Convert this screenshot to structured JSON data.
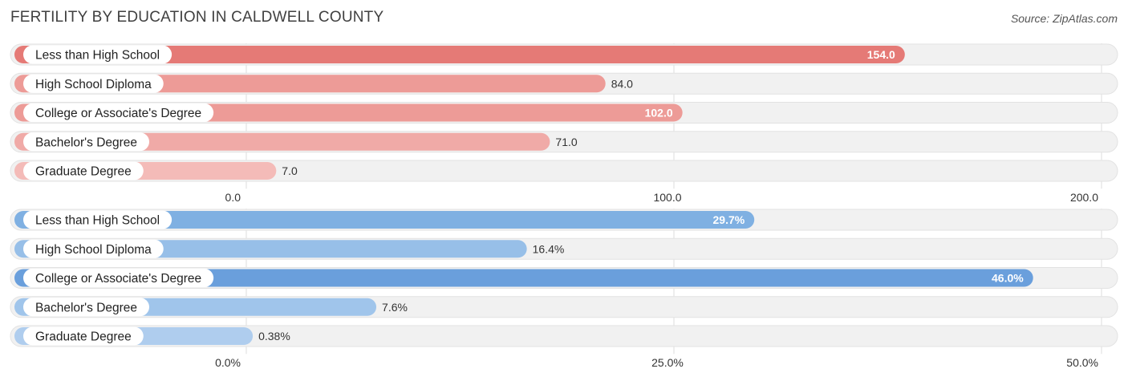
{
  "title": "FERTILITY BY EDUCATION IN CALDWELL COUNTY",
  "source": "Source: ZipAtlas.com",
  "chart_data": [
    {
      "type": "bar",
      "orientation": "horizontal",
      "categories": [
        "Less than High School",
        "High School Diploma",
        "College or Associate's Degree",
        "Bachelor's Degree",
        "Graduate Degree"
      ],
      "values": [
        154.0,
        84.0,
        102.0,
        71.0,
        7.0
      ],
      "value_labels": [
        "154.0",
        "84.0",
        "102.0",
        "71.0",
        "7.0"
      ],
      "xlim": [
        0,
        200
      ],
      "ticks": [
        0,
        100,
        200
      ],
      "tick_labels": [
        "0.0",
        "100.0",
        "200.0"
      ],
      "colors": [
        "#e57a76",
        "#ed9b97",
        "#ed9b97",
        "#f0aaa7",
        "#f4bbb8"
      ],
      "grid": true
    },
    {
      "type": "bar",
      "orientation": "horizontal",
      "categories": [
        "Less than High School",
        "High School Diploma",
        "College or Associate's Degree",
        "Bachelor's Degree",
        "Graduate Degree"
      ],
      "values": [
        29.7,
        16.4,
        46.0,
        7.6,
        0.38
      ],
      "value_labels": [
        "29.7%",
        "16.4%",
        "46.0%",
        "7.6%",
        "0.38%"
      ],
      "xlim": [
        0,
        50
      ],
      "ticks": [
        0,
        25,
        50
      ],
      "tick_labels": [
        "0.0%",
        "25.0%",
        "50.0%"
      ],
      "colors": [
        "#7fb0e2",
        "#97bfe8",
        "#6a9fdc",
        "#a0c5eb",
        "#afcdee"
      ],
      "grid": true
    }
  ]
}
